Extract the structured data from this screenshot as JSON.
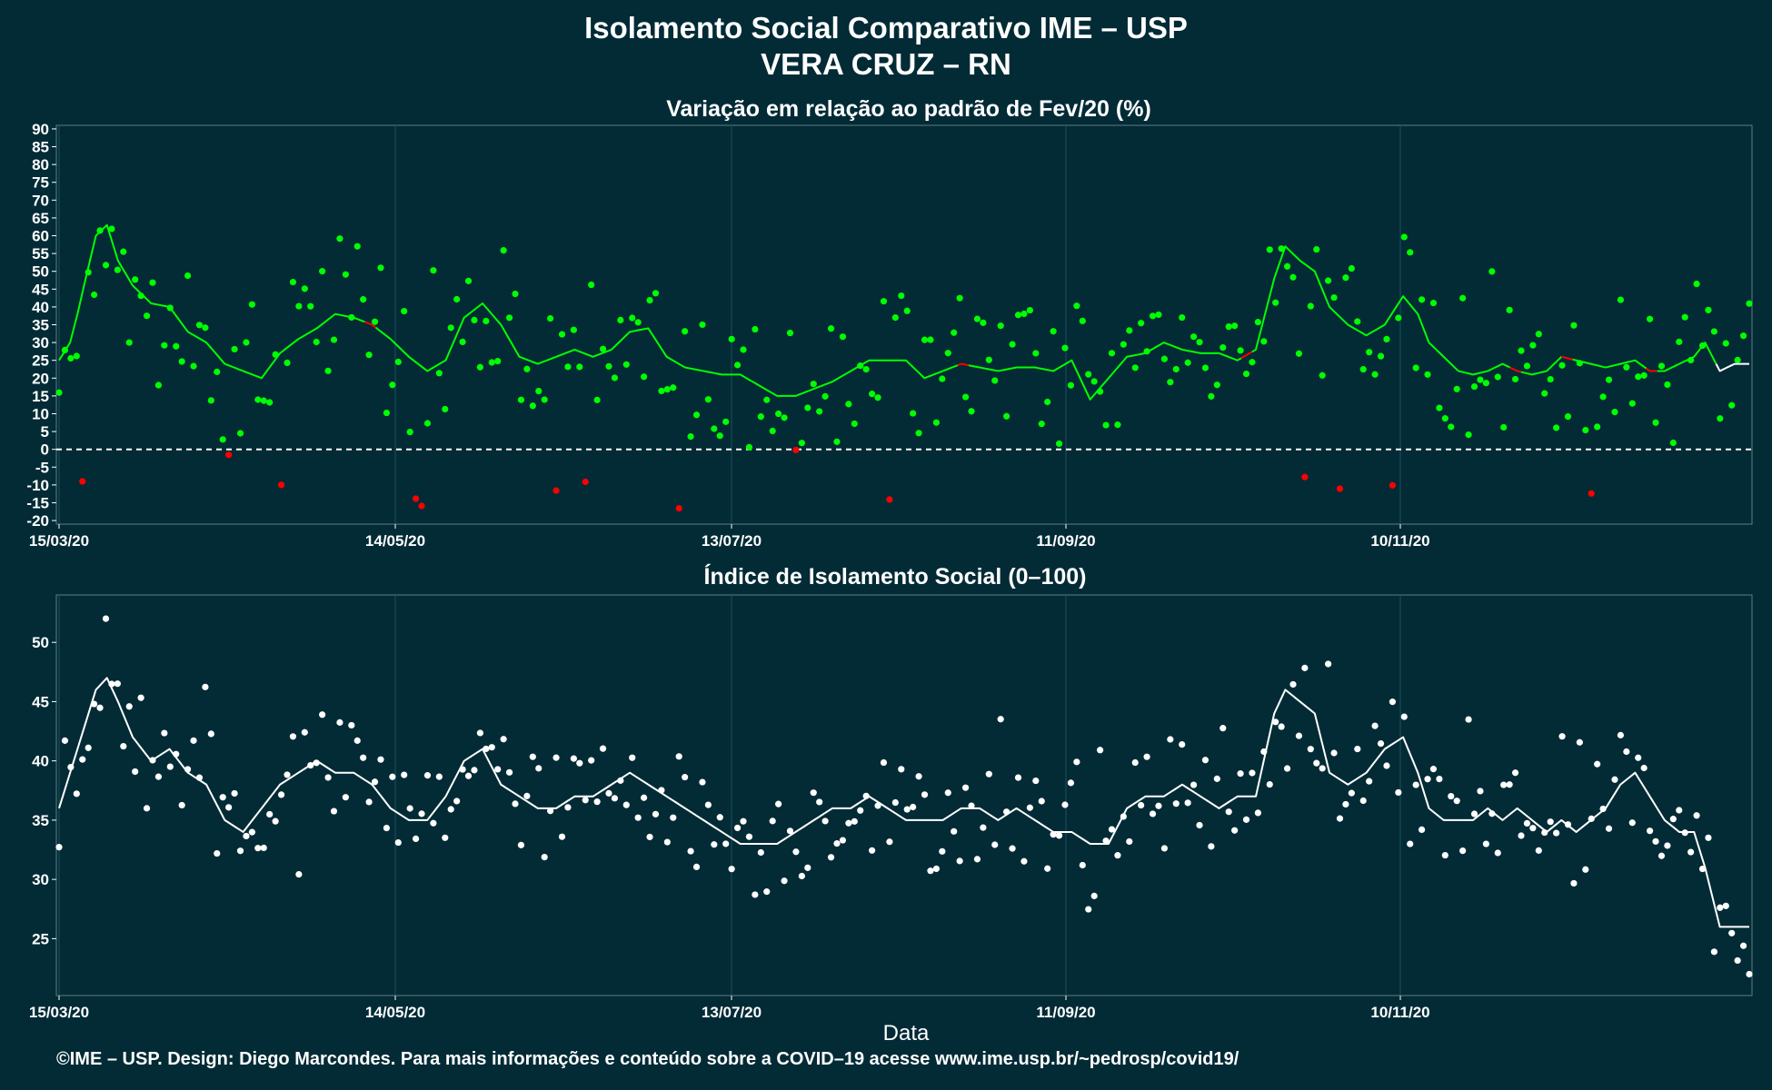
{
  "title_line1": "Isolamento Social Comparativo IME – USP",
  "title_line2": "VERA CRUZ – RN",
  "footer": "©IME – USP. Design: Diego Marcondes. Para mais informações e conteúdo sobre a COVID–19 acesse www.ime.usp.br/~pedrosp/covid19/",
  "colors": {
    "background": "#022b36",
    "positive": "#00ff00",
    "negative": "#ff0000",
    "index": "#ffffff",
    "grid": "#1f4f5c"
  },
  "chart_data": [
    {
      "type": "scatter",
      "title": "Variação em relação ao padrão de Fev/20 (%)",
      "xlabel": "",
      "ylabel": "",
      "x_start": "15/03/20",
      "x_end": "31/12/20",
      "x_ticks": [
        "15/03/20",
        "14/05/20",
        "13/07/20",
        "11/09/20",
        "10/11/20"
      ],
      "y_ticks": [
        -20,
        -15,
        -10,
        -5,
        0,
        5,
        10,
        15,
        20,
        25,
        30,
        35,
        40,
        45,
        50,
        55,
        60,
        65,
        70,
        75,
        80,
        85,
        90
      ],
      "ylim": [
        -21,
        91
      ],
      "reference_line": 0,
      "anchors": [
        [
          0,
          25
        ],
        [
          3,
          30
        ],
        [
          5,
          38
        ],
        [
          7,
          47
        ],
        [
          10,
          60
        ],
        [
          13,
          63
        ],
        [
          16,
          53
        ],
        [
          20,
          46
        ],
        [
          25,
          41
        ],
        [
          30,
          40
        ],
        [
          35,
          33
        ],
        [
          40,
          30
        ],
        [
          45,
          24
        ],
        [
          50,
          22
        ],
        [
          55,
          20
        ],
        [
          60,
          27
        ],
        [
          65,
          31
        ],
        [
          70,
          34
        ],
        [
          75,
          38
        ],
        [
          80,
          37
        ],
        [
          85,
          35
        ],
        [
          90,
          31
        ],
        [
          95,
          26
        ],
        [
          100,
          22
        ],
        [
          105,
          25
        ],
        [
          110,
          37
        ],
        [
          115,
          41
        ],
        [
          120,
          35
        ],
        [
          125,
          26
        ],
        [
          130,
          24
        ],
        [
          135,
          26
        ],
        [
          140,
          28
        ],
        [
          145,
          26
        ],
        [
          150,
          28
        ],
        [
          155,
          33
        ],
        [
          160,
          34
        ],
        [
          165,
          26
        ],
        [
          170,
          23
        ],
        [
          175,
          22
        ],
        [
          180,
          21
        ],
        [
          185,
          21
        ],
        [
          190,
          18
        ],
        [
          195,
          15
        ],
        [
          200,
          15
        ],
        [
          205,
          17
        ],
        [
          210,
          19
        ],
        [
          215,
          22
        ],
        [
          220,
          25
        ],
        [
          225,
          25
        ],
        [
          230,
          25
        ],
        [
          235,
          20
        ],
        [
          240,
          22
        ],
        [
          245,
          24
        ],
        [
          250,
          23
        ],
        [
          255,
          22
        ],
        [
          260,
          23
        ],
        [
          265,
          23
        ],
        [
          270,
          22
        ],
        [
          275,
          25
        ],
        [
          280,
          14
        ],
        [
          285,
          20
        ],
        [
          290,
          26
        ],
        [
          295,
          27
        ],
        [
          300,
          30
        ],
        [
          305,
          28
        ],
        [
          310,
          27
        ],
        [
          315,
          27
        ],
        [
          320,
          25
        ],
        [
          325,
          28
        ],
        [
          330,
          48
        ],
        [
          333,
          57
        ],
        [
          337,
          53
        ],
        [
          341,
          50
        ],
        [
          345,
          40
        ],
        [
          350,
          35
        ],
        [
          355,
          32
        ],
        [
          360,
          35
        ],
        [
          365,
          43
        ],
        [
          369,
          38
        ],
        [
          372,
          30
        ],
        [
          376,
          26
        ],
        [
          380,
          22
        ],
        [
          384,
          21
        ],
        [
          388,
          22
        ],
        [
          392,
          24
        ],
        [
          396,
          22
        ],
        [
          400,
          21
        ],
        [
          404,
          22
        ],
        [
          408,
          26
        ],
        [
          412,
          25
        ],
        [
          416,
          24
        ],
        [
          420,
          23
        ],
        [
          424,
          24
        ],
        [
          428,
          25
        ],
        [
          432,
          22
        ],
        [
          436,
          22
        ],
        [
          440,
          24
        ],
        [
          444,
          26
        ],
        [
          447,
          30
        ],
        [
          451,
          22
        ],
        [
          455,
          24
        ],
        [
          459,
          24
        ]
      ],
      "negative_segments": [
        [
          84,
          86
        ],
        [
          245,
          247
        ],
        [
          322,
          324
        ],
        [
          395,
          397
        ],
        [
          409,
          411
        ],
        [
          432,
          434
        ]
      ],
      "white_segments": [
        [
          451,
          459
        ]
      ],
      "point_count": 290,
      "n_days": 290
    },
    {
      "type": "scatter",
      "title": "Índice de Isolamento Social (0–100)",
      "xlabel": "Data",
      "ylabel": "",
      "x_start": "15/03/20",
      "x_end": "31/12/20",
      "x_ticks": [
        "15/03/20",
        "14/05/20",
        "13/07/20",
        "11/09/20",
        "10/11/20"
      ],
      "y_ticks": [
        25,
        30,
        35,
        40,
        45,
        50
      ],
      "ylim": [
        20.2,
        54
      ],
      "anchors": [
        [
          0,
          36
        ],
        [
          5,
          41
        ],
        [
          10,
          46
        ],
        [
          13,
          47
        ],
        [
          16,
          45
        ],
        [
          20,
          42
        ],
        [
          25,
          40
        ],
        [
          30,
          41
        ],
        [
          35,
          39
        ],
        [
          40,
          38
        ],
        [
          45,
          35
        ],
        [
          50,
          34
        ],
        [
          55,
          36
        ],
        [
          60,
          38
        ],
        [
          65,
          39
        ],
        [
          70,
          40
        ],
        [
          75,
          39
        ],
        [
          80,
          39
        ],
        [
          85,
          38
        ],
        [
          90,
          36
        ],
        [
          95,
          35
        ],
        [
          100,
          35
        ],
        [
          105,
          37
        ],
        [
          110,
          40
        ],
        [
          115,
          41
        ],
        [
          120,
          38
        ],
        [
          125,
          37
        ],
        [
          130,
          36
        ],
        [
          135,
          36
        ],
        [
          140,
          37
        ],
        [
          145,
          37
        ],
        [
          150,
          38
        ],
        [
          155,
          39
        ],
        [
          160,
          38
        ],
        [
          165,
          37
        ],
        [
          170,
          36
        ],
        [
          175,
          35
        ],
        [
          180,
          34
        ],
        [
          185,
          33
        ],
        [
          190,
          33
        ],
        [
          195,
          33
        ],
        [
          200,
          34
        ],
        [
          205,
          35
        ],
        [
          210,
          36
        ],
        [
          215,
          36
        ],
        [
          220,
          37
        ],
        [
          225,
          36
        ],
        [
          230,
          35
        ],
        [
          235,
          35
        ],
        [
          240,
          35
        ],
        [
          245,
          36
        ],
        [
          250,
          36
        ],
        [
          255,
          35
        ],
        [
          260,
          36
        ],
        [
          265,
          35
        ],
        [
          270,
          34
        ],
        [
          275,
          34
        ],
        [
          280,
          33
        ],
        [
          285,
          33
        ],
        [
          290,
          36
        ],
        [
          295,
          37
        ],
        [
          300,
          37
        ],
        [
          305,
          38
        ],
        [
          310,
          37
        ],
        [
          315,
          36
        ],
        [
          320,
          37
        ],
        [
          325,
          37
        ],
        [
          330,
          44
        ],
        [
          333,
          46
        ],
        [
          337,
          45
        ],
        [
          341,
          44
        ],
        [
          345,
          39
        ],
        [
          350,
          38
        ],
        [
          355,
          39
        ],
        [
          360,
          41
        ],
        [
          365,
          42
        ],
        [
          369,
          39
        ],
        [
          372,
          36
        ],
        [
          376,
          35
        ],
        [
          380,
          35
        ],
        [
          384,
          35
        ],
        [
          388,
          36
        ],
        [
          392,
          35
        ],
        [
          396,
          36
        ],
        [
          400,
          35
        ],
        [
          404,
          34
        ],
        [
          408,
          35
        ],
        [
          412,
          34
        ],
        [
          416,
          35
        ],
        [
          420,
          36
        ],
        [
          424,
          38
        ],
        [
          428,
          39
        ],
        [
          432,
          37
        ],
        [
          436,
          35
        ],
        [
          440,
          34
        ],
        [
          444,
          34
        ],
        [
          447,
          31
        ],
        [
          451,
          26
        ],
        [
          455,
          26
        ],
        [
          459,
          26
        ]
      ],
      "point_count": 290,
      "n_days": 290
    }
  ]
}
